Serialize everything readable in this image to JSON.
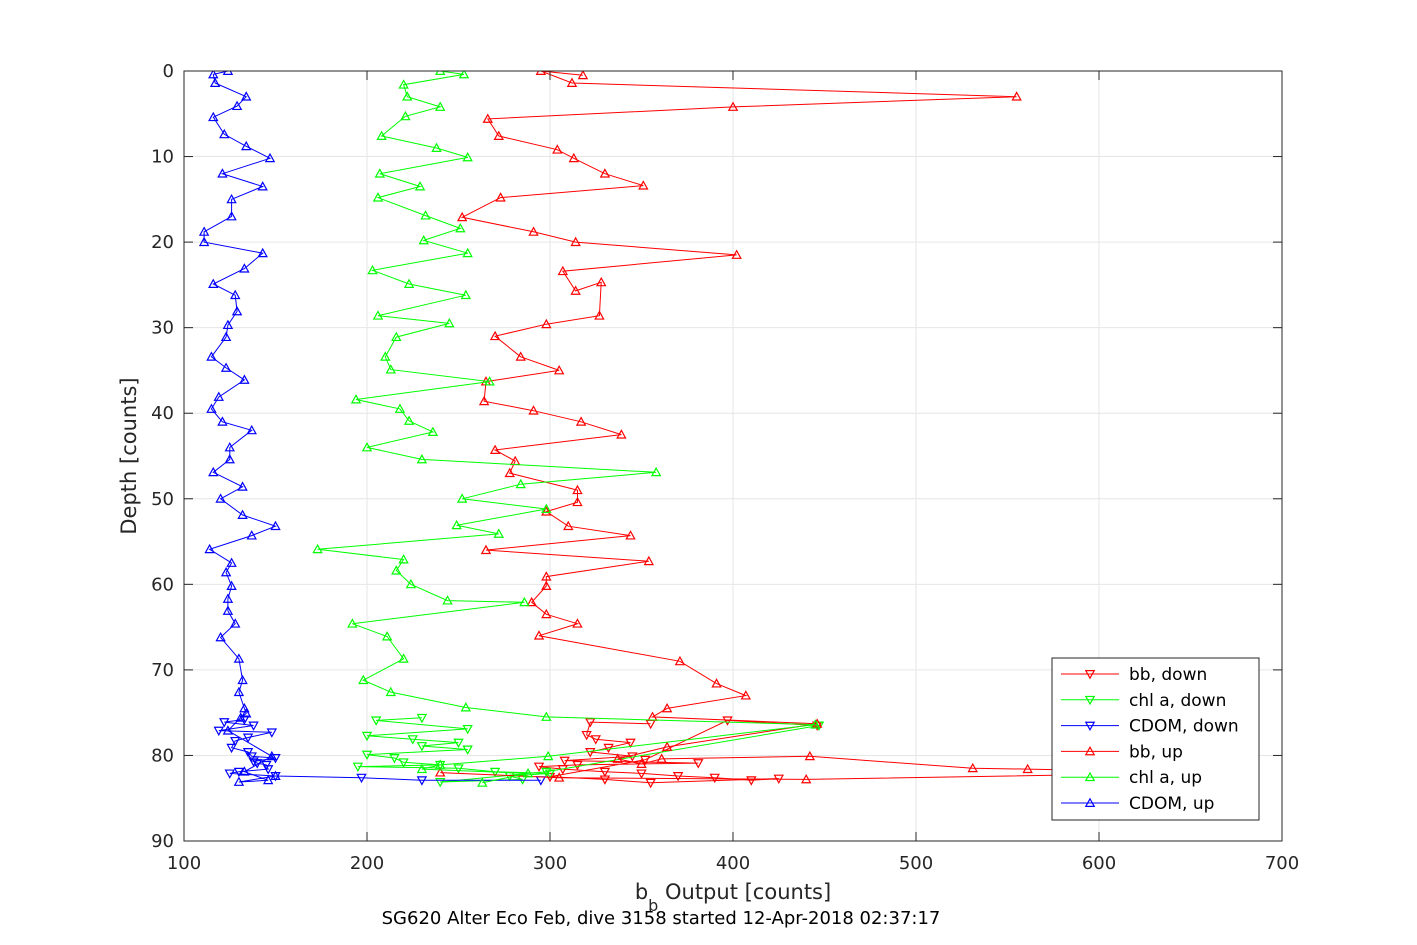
{
  "chart_data": {
    "type": "line",
    "title": "SG620 Alter Eco Feb, dive 3158 started 12-Apr-2018 02:37:17",
    "xlabel_main": "b",
    "xlabel_sub": "b",
    "xlabel_rest": " Output [counts]",
    "ylabel": "Depth [counts]",
    "xlim": [
      100,
      700
    ],
    "ylim": [
      0,
      90
    ],
    "y_reversed": true,
    "grid": true,
    "xticks": [
      100,
      200,
      300,
      400,
      500,
      600,
      700
    ],
    "yticks": [
      0,
      10,
      20,
      30,
      40,
      50,
      60,
      70,
      80,
      90
    ],
    "legend_position": "bottom-right",
    "series": [
      {
        "name": "bb, down",
        "color": "#ff0000",
        "marker": "triangle-down",
        "points": [
          [
            355,
            76.3
          ],
          [
            322,
            76.1
          ],
          [
            320,
            77.6
          ],
          [
            325,
            78.1
          ],
          [
            344,
            78.5
          ],
          [
            332,
            79.1
          ],
          [
            322,
            79.6
          ],
          [
            345,
            80.1
          ],
          [
            308,
            80.6
          ],
          [
            381,
            80.9
          ],
          [
            315,
            81.1
          ],
          [
            294,
            81.3
          ],
          [
            307,
            81.6
          ],
          [
            330,
            81.9
          ],
          [
            350,
            82.1
          ],
          [
            370,
            82.4
          ],
          [
            390,
            82.6
          ],
          [
            410,
            82.9
          ],
          [
            425,
            82.7
          ],
          [
            355,
            83.2
          ],
          [
            330,
            82.8
          ],
          [
            300,
            82.5
          ],
          [
            352,
            80.5
          ],
          [
            397,
            75.9
          ],
          [
            446,
            76.5
          ]
        ]
      },
      {
        "name": "chl a, down",
        "color": "#00ff00",
        "marker": "triangle-down",
        "points": [
          [
            230,
            75.6
          ],
          [
            205,
            75.9
          ],
          [
            255,
            76.9
          ],
          [
            200,
            77.7
          ],
          [
            225,
            78.1
          ],
          [
            250,
            78.5
          ],
          [
            230,
            78.9
          ],
          [
            255,
            79.3
          ],
          [
            200,
            79.9
          ],
          [
            215,
            80.3
          ],
          [
            220,
            80.8
          ],
          [
            240,
            81.1
          ],
          [
            195,
            81.3
          ],
          [
            250,
            81.5
          ],
          [
            270,
            81.9
          ],
          [
            300,
            82.1
          ],
          [
            278,
            82.4
          ],
          [
            285,
            82.8
          ],
          [
            240,
            83.1
          ],
          [
            298,
            81.9
          ],
          [
            447,
            76.5
          ]
        ]
      },
      {
        "name": "CDOM, down",
        "color": "#0000ff",
        "marker": "triangle-down",
        "points": [
          [
            133,
            75.8
          ],
          [
            122,
            76.1
          ],
          [
            138,
            76.5
          ],
          [
            119,
            77.1
          ],
          [
            148,
            77.3
          ],
          [
            135,
            77.9
          ],
          [
            128,
            78.3
          ],
          [
            126,
            79.1
          ],
          [
            135,
            79.6
          ],
          [
            137,
            80.1
          ],
          [
            150,
            80.3
          ],
          [
            138,
            80.7
          ],
          [
            140,
            80.9
          ],
          [
            145,
            81.1
          ],
          [
            146,
            81.6
          ],
          [
            130,
            81.9
          ],
          [
            125,
            82.1
          ],
          [
            150,
            82.4
          ],
          [
            197,
            82.6
          ],
          [
            230,
            82.9
          ],
          [
            295,
            82.9
          ]
        ]
      },
      {
        "name": "bb, up",
        "color": "#ff0000",
        "marker": "triangle-up",
        "points": [
          [
            318,
            0.5
          ],
          [
            295,
            0.0
          ],
          [
            312,
            1.4
          ],
          [
            555,
            3.0
          ],
          [
            400,
            4.2
          ],
          [
            266,
            5.6
          ],
          [
            272,
            7.6
          ],
          [
            304,
            9.2
          ],
          [
            313,
            10.2
          ],
          [
            330,
            12.0
          ],
          [
            351,
            13.4
          ],
          [
            273,
            14.8
          ],
          [
            252,
            17.1
          ],
          [
            291,
            18.8
          ],
          [
            314,
            20.0
          ],
          [
            402,
            21.5
          ],
          [
            307,
            23.4
          ],
          [
            314,
            25.7
          ],
          [
            328,
            24.7
          ],
          [
            327,
            28.6
          ],
          [
            298,
            29.6
          ],
          [
            270,
            31.0
          ],
          [
            284,
            33.4
          ],
          [
            305,
            35.0
          ],
          [
            265,
            36.3
          ],
          [
            264,
            38.6
          ],
          [
            291,
            39.7
          ],
          [
            317,
            41.0
          ],
          [
            339,
            42.5
          ],
          [
            270,
            44.3
          ],
          [
            281,
            45.6
          ],
          [
            278,
            47.0
          ],
          [
            315,
            49.0
          ],
          [
            315,
            50.4
          ],
          [
            298,
            51.5
          ],
          [
            310,
            53.2
          ],
          [
            344,
            54.3
          ],
          [
            265,
            56.0
          ],
          [
            354,
            57.3
          ],
          [
            298,
            59.1
          ],
          [
            298,
            60.2
          ],
          [
            290,
            62.1
          ],
          [
            298,
            63.5
          ],
          [
            315,
            64.6
          ],
          [
            294,
            66.0
          ],
          [
            371,
            69.0
          ],
          [
            391,
            71.6
          ],
          [
            407,
            73.0
          ],
          [
            364,
            74.5
          ],
          [
            356,
            75.5
          ],
          [
            446,
            76.3
          ],
          [
            364,
            79.0
          ],
          [
            337,
            80.4
          ],
          [
            350,
            81.0
          ],
          [
            361,
            80.4
          ],
          [
            442,
            80.1
          ],
          [
            531,
            81.5
          ],
          [
            561,
            81.6
          ],
          [
            660,
            82.0
          ],
          [
            440,
            82.8
          ],
          [
            305,
            82.6
          ],
          [
            240,
            82.0
          ]
        ]
      },
      {
        "name": "chl a, up",
        "color": "#00ff00",
        "marker": "triangle-up",
        "points": [
          [
            240,
            0.0
          ],
          [
            253,
            0.4
          ],
          [
            220,
            1.6
          ],
          [
            222,
            3.0
          ],
          [
            240,
            4.2
          ],
          [
            221,
            5.3
          ],
          [
            208,
            7.6
          ],
          [
            238,
            9.0
          ],
          [
            255,
            10.1
          ],
          [
            207,
            12.0
          ],
          [
            229,
            13.5
          ],
          [
            206,
            14.8
          ],
          [
            232,
            16.9
          ],
          [
            251,
            18.4
          ],
          [
            231,
            19.8
          ],
          [
            255,
            21.3
          ],
          [
            203,
            23.3
          ],
          [
            223,
            24.9
          ],
          [
            254,
            26.2
          ],
          [
            206,
            28.6
          ],
          [
            245,
            29.5
          ],
          [
            216,
            31.1
          ],
          [
            210,
            33.4
          ],
          [
            213,
            34.9
          ],
          [
            267,
            36.3
          ],
          [
            194,
            38.4
          ],
          [
            218,
            39.5
          ],
          [
            223,
            40.9
          ],
          [
            236,
            42.2
          ],
          [
            200,
            44.0
          ],
          [
            230,
            45.4
          ],
          [
            358,
            46.9
          ],
          [
            284,
            48.3
          ],
          [
            252,
            50.0
          ],
          [
            298,
            51.2
          ],
          [
            249,
            53.1
          ],
          [
            272,
            54.1
          ],
          [
            173,
            55.9
          ],
          [
            220,
            57.1
          ],
          [
            216,
            58.4
          ],
          [
            224,
            60.0
          ],
          [
            244,
            61.9
          ],
          [
            286,
            62.1
          ],
          [
            192,
            64.6
          ],
          [
            211,
            66.1
          ],
          [
            220,
            68.7
          ],
          [
            198,
            71.2
          ],
          [
            213,
            72.6
          ],
          [
            254,
            74.4
          ],
          [
            298,
            75.5
          ],
          [
            445,
            76.4
          ],
          [
            299,
            80.1
          ],
          [
            240,
            81.1
          ],
          [
            230,
            81.6
          ],
          [
            288,
            82.1
          ],
          [
            263,
            83.2
          ]
        ]
      },
      {
        "name": "CDOM, up",
        "color": "#0000ff",
        "marker": "triangle-up",
        "points": [
          [
            124,
            0.0
          ],
          [
            116,
            0.4
          ],
          [
            117,
            1.4
          ],
          [
            134,
            3.0
          ],
          [
            129,
            4.1
          ],
          [
            116,
            5.4
          ],
          [
            122,
            7.4
          ],
          [
            134,
            8.8
          ],
          [
            147,
            10.2
          ],
          [
            121,
            12.0
          ],
          [
            143,
            13.5
          ],
          [
            126,
            15.0
          ],
          [
            126,
            17.0
          ],
          [
            111,
            18.8
          ],
          [
            111,
            20.0
          ],
          [
            143,
            21.3
          ],
          [
            133,
            23.1
          ],
          [
            116,
            24.9
          ],
          [
            128,
            26.2
          ],
          [
            129,
            28.1
          ],
          [
            124,
            29.7
          ],
          [
            123,
            31.1
          ],
          [
            115,
            33.4
          ],
          [
            123,
            34.7
          ],
          [
            133,
            36.1
          ],
          [
            119,
            38.1
          ],
          [
            115,
            39.5
          ],
          [
            121,
            41.0
          ],
          [
            137,
            42.0
          ],
          [
            125,
            44.0
          ],
          [
            125,
            45.4
          ],
          [
            116,
            46.9
          ],
          [
            132,
            48.6
          ],
          [
            120,
            50.0
          ],
          [
            132,
            51.9
          ],
          [
            150,
            53.2
          ],
          [
            137,
            54.3
          ],
          [
            114,
            55.9
          ],
          [
            126,
            57.5
          ],
          [
            123,
            58.6
          ],
          [
            126,
            60.2
          ],
          [
            124,
            61.7
          ],
          [
            124,
            63.1
          ],
          [
            128,
            64.6
          ],
          [
            120,
            66.2
          ],
          [
            130,
            68.7
          ],
          [
            132,
            71.2
          ],
          [
            130,
            72.6
          ],
          [
            133,
            74.5
          ],
          [
            134,
            75.1
          ],
          [
            131,
            75.6
          ],
          [
            124,
            77.1
          ],
          [
            148,
            80.1
          ],
          [
            133,
            81.9
          ],
          [
            146,
            82.9
          ],
          [
            130,
            83.1
          ],
          [
            150,
            82.4
          ]
        ]
      }
    ]
  }
}
